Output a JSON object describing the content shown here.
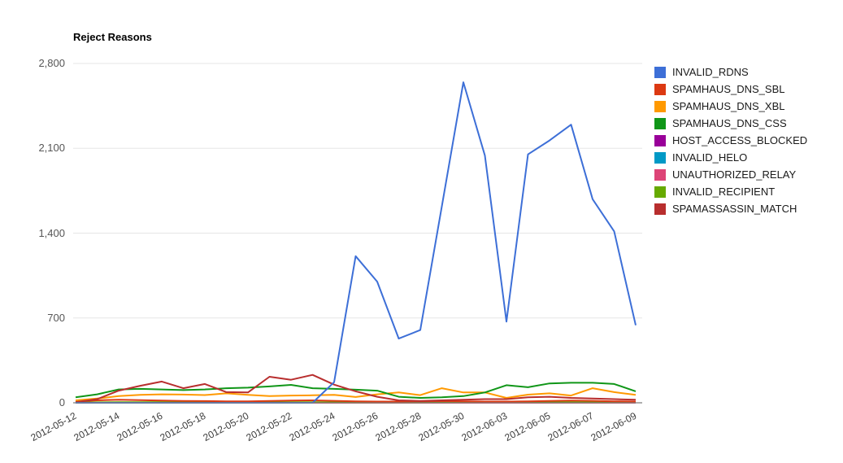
{
  "title": "Reject Reasons",
  "chart_data": {
    "type": "line",
    "title": "Reject Reasons",
    "xlabel": "",
    "ylabel": "",
    "ylim": [
      0,
      2800
    ],
    "grid": true,
    "legend_position": "right",
    "n_points": 27,
    "points_per_tick": 2,
    "x_tick_labels": [
      "2012-05-12",
      "2012-05-14",
      "2012-05-16",
      "2012-05-18",
      "2012-05-20",
      "2012-05-22",
      "2012-05-24",
      "2012-05-26",
      "2012-05-28",
      "2012-05-30",
      "2012-06-03",
      "2012-06-05",
      "2012-06-07",
      "2012-06-09"
    ],
    "y_ticks": [
      {
        "label": "0",
        "value": 0
      },
      {
        "label": "700",
        "value": 700
      },
      {
        "label": "1,400",
        "value": 1400
      },
      {
        "label": "2,100",
        "value": 2100
      },
      {
        "label": "2,800",
        "value": 2800
      }
    ],
    "series": [
      {
        "name": "INVALID_RDNS",
        "color": "#3D6FD7",
        "values": [
          0,
          0,
          0,
          0,
          0,
          0,
          0,
          0,
          0,
          0,
          0,
          0,
          170,
          1210,
          1000,
          530,
          600,
          1620,
          2645,
          2040,
          670,
          2050,
          2165,
          2295,
          1680,
          1415,
          640
        ]
      },
      {
        "name": "SPAMHAUS_DNS_SBL",
        "color": "#DC3912",
        "values": [
          10,
          20,
          25,
          22,
          18,
          15,
          14,
          12,
          12,
          15,
          18,
          20,
          16,
          12,
          10,
          10,
          12,
          14,
          12,
          10,
          10,
          12,
          15,
          18,
          16,
          12,
          10
        ]
      },
      {
        "name": "SPAMHAUS_DNS_XBL",
        "color": "#FF9900",
        "values": [
          20,
          35,
          55,
          65,
          70,
          68,
          64,
          78,
          65,
          55,
          60,
          62,
          65,
          48,
          70,
          85,
          63,
          120,
          85,
          85,
          40,
          67,
          78,
          60,
          120,
          88,
          65
        ]
      },
      {
        "name": "SPAMHAUS_DNS_CSS",
        "color": "#109618",
        "values": [
          45,
          70,
          110,
          115,
          110,
          105,
          110,
          120,
          125,
          135,
          148,
          120,
          115,
          108,
          100,
          50,
          40,
          45,
          55,
          85,
          145,
          128,
          160,
          165,
          165,
          155,
          95
        ]
      },
      {
        "name": "HOST_ACCESS_BLOCKED",
        "color": "#990099",
        "values": [
          0,
          0,
          0,
          0,
          0,
          0,
          0,
          0,
          0,
          0,
          0,
          0,
          0,
          0,
          0,
          0,
          0,
          0,
          0,
          0,
          0,
          0,
          0,
          0,
          0,
          0,
          0
        ]
      },
      {
        "name": "INVALID_HELO",
        "color": "#0099C6",
        "values": [
          0,
          0,
          0,
          0,
          0,
          0,
          0,
          0,
          0,
          0,
          0,
          0,
          0,
          0,
          0,
          0,
          0,
          0,
          0,
          0,
          0,
          0,
          0,
          0,
          0,
          0,
          0
        ]
      },
      {
        "name": "UNAUTHORIZED_RELAY",
        "color": "#DD4477",
        "values": [
          0,
          0,
          0,
          0,
          0,
          0,
          0,
          0,
          0,
          0,
          0,
          0,
          0,
          0,
          0,
          0,
          0,
          0,
          0,
          0,
          0,
          0,
          0,
          0,
          0,
          0,
          0
        ]
      },
      {
        "name": "INVALID_RECIPIENT",
        "color": "#66AA00",
        "values": [
          3,
          4,
          5,
          5,
          6,
          5,
          4,
          4,
          4,
          5,
          5,
          5,
          4,
          3,
          3,
          3,
          3,
          4,
          4,
          5,
          6,
          6,
          6,
          6,
          5,
          5,
          4
        ]
      },
      {
        "name": "SPAMASSASSIN_MATCH",
        "color": "#B82E2E",
        "values": [
          5,
          30,
          100,
          140,
          175,
          120,
          155,
          88,
          85,
          215,
          190,
          230,
          150,
          95,
          50,
          20,
          15,
          20,
          25,
          30,
          30,
          45,
          50,
          40,
          35,
          30,
          25
        ]
      }
    ]
  }
}
